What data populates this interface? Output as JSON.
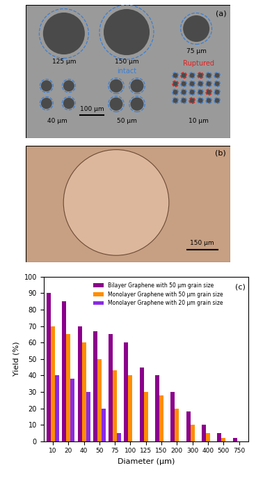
{
  "chart_data": {
    "type": "bar",
    "label": "(c)",
    "xlabel": "Diameter (µm)",
    "ylabel": "Yield (%)",
    "categories": [
      "10",
      "20",
      "40",
      "50",
      "75",
      "100",
      "125",
      "150",
      "200",
      "300",
      "400",
      "500",
      "750"
    ],
    "series": [
      {
        "name": "Bilayer Graphene with 50 µm grain size",
        "color": "#8b008b",
        "values": [
          90,
          85,
          70,
          67,
          65,
          60,
          45,
          40,
          30,
          18,
          10,
          5,
          2
        ]
      },
      {
        "name": "Monolayer Graphene with 50 µm grain size",
        "color": "#ff8c00",
        "values": [
          70,
          65,
          60,
          50,
          43,
          40,
          30,
          28,
          20,
          10,
          5,
          2,
          0
        ]
      },
      {
        "name": "Monolayer Graphene with 20 µm grain size",
        "color": "#8a2be2",
        "values": [
          40,
          38,
          30,
          20,
          5,
          0,
          0,
          0,
          0,
          0,
          0,
          0,
          0
        ]
      }
    ],
    "ylim": [
      0,
      100
    ],
    "yticks": [
      0,
      10,
      20,
      30,
      40,
      50,
      60,
      70,
      80,
      90,
      100
    ],
    "legend": "upper right",
    "grid": false
  },
  "panels": {
    "a": {
      "label": "(a)",
      "circle_labels": [
        "125 µm",
        "150 µm",
        "75 µm",
        "40 µm",
        "50 µm",
        "10 µm"
      ],
      "intact": "intact",
      "ruptured": "Ruptured",
      "scale_bar": "100 µm"
    },
    "b": {
      "label": "(b)",
      "scale_bar": "150 µm"
    }
  }
}
